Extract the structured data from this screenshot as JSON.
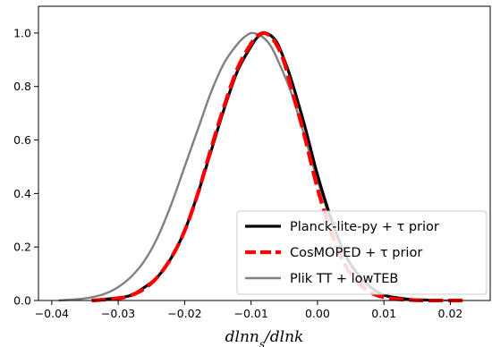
{
  "chart_data": {
    "type": "line",
    "title": "",
    "xlabel": "dlnn_s/dlnk",
    "ylabel": "",
    "xlim": [
      -0.042,
      0.026
    ],
    "ylim": [
      0.0,
      1.1
    ],
    "xticks": [
      -0.04,
      -0.03,
      -0.02,
      -0.01,
      0.0,
      0.01,
      0.02
    ],
    "xtick_labels": [
      "−0.04",
      "−0.03",
      "−0.02",
      "−0.01",
      "0.00",
      "0.01",
      "0.02"
    ],
    "yticks": [
      0.0,
      0.2,
      0.4,
      0.6,
      0.8,
      1.0
    ],
    "ytick_labels": [
      "0.0",
      "0.2",
      "0.4",
      "0.6",
      "0.8",
      "1.0"
    ],
    "grid": false,
    "legend_position": "lower-right",
    "series": [
      {
        "name": "Planck-lite-py + τ prior",
        "color": "#000000",
        "style": "solid",
        "x": [
          -0.034,
          -0.03,
          -0.028,
          -0.026,
          -0.024,
          -0.022,
          -0.02,
          -0.018,
          -0.016,
          -0.014,
          -0.012,
          -0.01,
          -0.009,
          -0.008,
          -0.007,
          -0.006,
          -0.005,
          -0.004,
          -0.002,
          0.0,
          0.002,
          0.004,
          0.006,
          0.008,
          0.01,
          0.012,
          0.014,
          0.016,
          0.018
        ],
        "y": [
          0.0,
          0.01,
          0.02,
          0.05,
          0.09,
          0.16,
          0.26,
          0.4,
          0.56,
          0.72,
          0.86,
          0.95,
          0.985,
          1.0,
          0.99,
          0.96,
          0.9,
          0.83,
          0.66,
          0.47,
          0.31,
          0.18,
          0.1,
          0.05,
          0.02,
          0.01,
          0.004,
          0.002,
          0.0
        ]
      },
      {
        "name": "CosMOPED + τ prior",
        "color": "#ff0000",
        "style": "dashed",
        "x": [
          -0.034,
          -0.03,
          -0.028,
          -0.026,
          -0.024,
          -0.022,
          -0.02,
          -0.018,
          -0.016,
          -0.014,
          -0.012,
          -0.01,
          -0.009,
          -0.008,
          -0.007,
          -0.006,
          -0.005,
          -0.004,
          -0.002,
          0.0,
          0.002,
          0.004,
          0.006,
          0.008,
          0.01,
          0.012,
          0.014,
          0.016,
          0.018,
          0.022
        ],
        "y": [
          0.0,
          0.008,
          0.02,
          0.045,
          0.09,
          0.16,
          0.26,
          0.4,
          0.57,
          0.73,
          0.87,
          0.96,
          0.99,
          1.0,
          0.985,
          0.95,
          0.89,
          0.8,
          0.62,
          0.42,
          0.26,
          0.14,
          0.07,
          0.03,
          0.012,
          0.005,
          0.002,
          0.0,
          0.0,
          0.0
        ]
      },
      {
        "name": "Plik TT + lowTEB",
        "color": "#808080",
        "style": "solid",
        "x": [
          -0.039,
          -0.036,
          -0.034,
          -0.032,
          -0.03,
          -0.028,
          -0.026,
          -0.024,
          -0.022,
          -0.02,
          -0.018,
          -0.016,
          -0.014,
          -0.012,
          -0.011,
          -0.01,
          -0.009,
          -0.008,
          -0.007,
          -0.006,
          -0.004,
          -0.002,
          0.0,
          0.002,
          0.004,
          0.006,
          0.008,
          0.01,
          0.012,
          0.014,
          0.016,
          0.018,
          0.02
        ],
        "y": [
          0.0,
          0.005,
          0.012,
          0.025,
          0.05,
          0.09,
          0.15,
          0.24,
          0.36,
          0.5,
          0.64,
          0.78,
          0.89,
          0.96,
          0.985,
          1.0,
          0.995,
          0.98,
          0.95,
          0.9,
          0.78,
          0.62,
          0.45,
          0.3,
          0.18,
          0.1,
          0.05,
          0.022,
          0.01,
          0.004,
          0.002,
          0.001,
          0.0
        ]
      }
    ]
  }
}
